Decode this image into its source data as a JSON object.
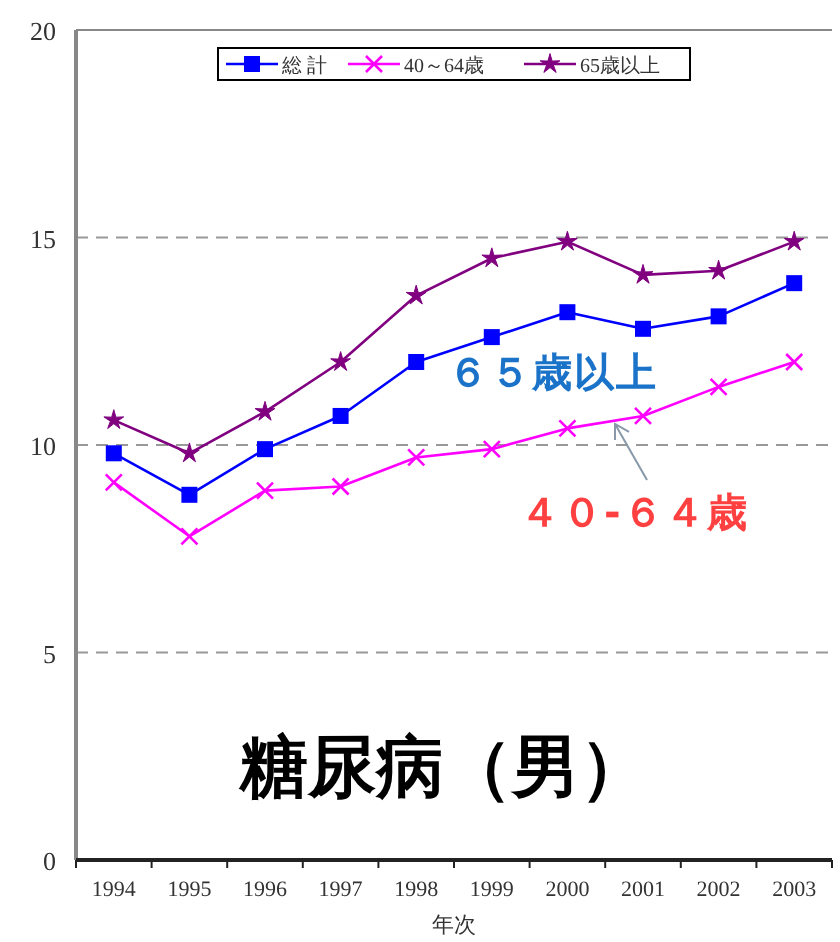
{
  "chart_data": {
    "type": "line",
    "title": "糖尿病（男）",
    "xlabel": "年次",
    "categories": [
      "1994",
      "1995",
      "1996",
      "1997",
      "1998",
      "1999",
      "2000",
      "2001",
      "2002",
      "2003"
    ],
    "series": [
      {
        "name": "総 計",
        "color": "#0000ff",
        "marker": "square",
        "values": [
          9.8,
          8.8,
          9.9,
          10.7,
          12.0,
          12.6,
          13.2,
          12.8,
          13.1,
          13.9
        ]
      },
      {
        "name": "40～64歳",
        "color": "#ff00ff",
        "marker": "cross",
        "values": [
          9.1,
          7.8,
          8.9,
          9.0,
          9.7,
          9.9,
          10.4,
          10.7,
          11.4,
          12.0
        ]
      },
      {
        "name": "65歳以上",
        "color": "#800080",
        "marker": "star",
        "values": [
          10.6,
          9.8,
          10.8,
          12.0,
          13.6,
          14.5,
          14.9,
          14.1,
          14.2,
          14.9
        ]
      }
    ],
    "ylim": [
      0,
      20
    ],
    "yticks": [
      0,
      5,
      10,
      15,
      20
    ],
    "grid": "y",
    "legend": "top",
    "line_style": "solid",
    "annotations": [
      "６５歳以上",
      {
        "text": "４０-６４歳",
        "x": "2001",
        "y": 10.7
      }
    ]
  }
}
